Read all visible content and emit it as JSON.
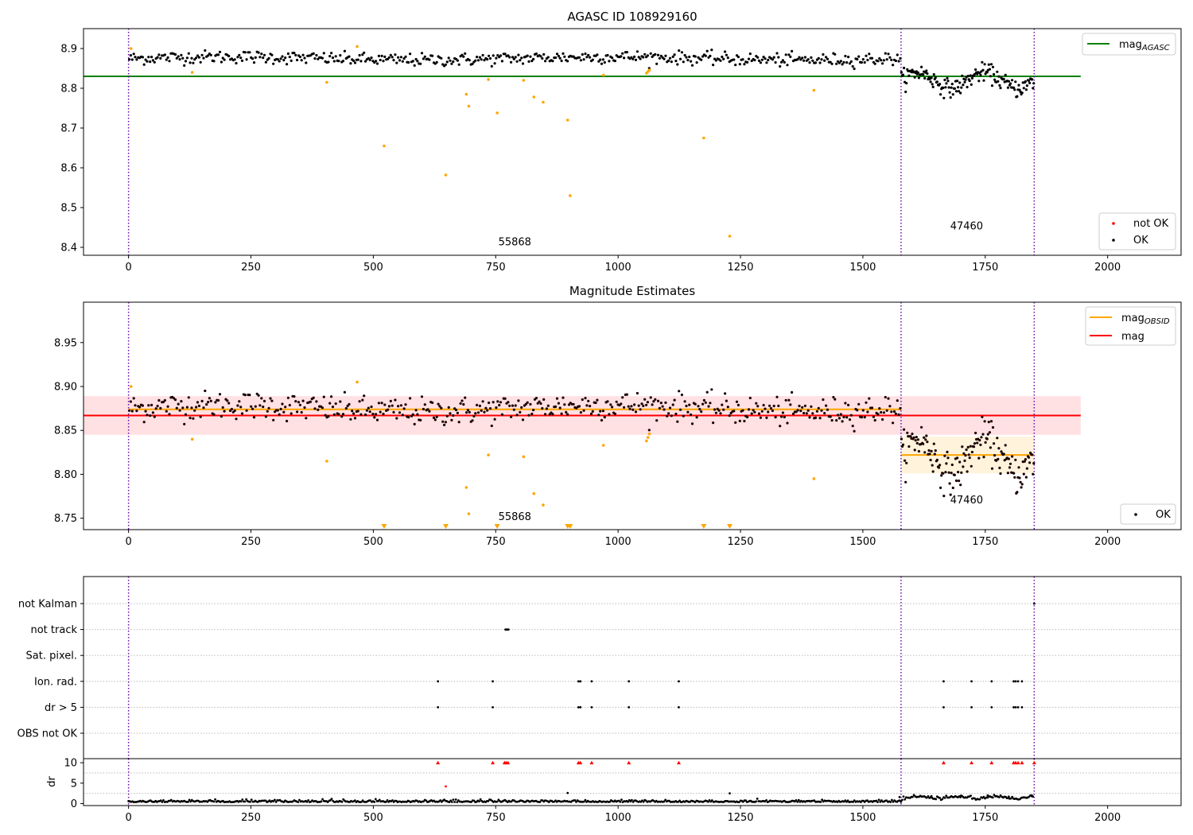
{
  "figure": {
    "colors": {
      "ok": "#000000",
      "not_ok": "#ff0000",
      "suspect": "#ffa500",
      "mag_agasc": "#008000",
      "mag_mean": "#ff0000",
      "mag_obsid": "#ffa500",
      "band_mag": "#ffe0e3",
      "band_obsid": "#fff3dc",
      "obs_boundary": "#6a0dad",
      "flag_grid": "#bbbbbb"
    }
  },
  "chart_data": [
    {
      "type": "scatter",
      "title": "AGASC ID 108929160",
      "xlabel": "",
      "ylabel": "",
      "xlim": [
        -92,
        2150
      ],
      "ylim": [
        8.38,
        8.95
      ],
      "xticks": [
        "0",
        "250",
        "500",
        "750",
        "1000",
        "1250",
        "1500",
        "1750",
        "2000"
      ],
      "yticks": [
        "8.4",
        "8.5",
        "8.6",
        "8.7",
        "8.8",
        "8.9"
      ],
      "obs_boundaries": [
        0,
        1578,
        1850
      ],
      "obsid_labels": [
        {
          "text": "55868",
          "x": 789,
          "y": 8.405
        },
        {
          "text": "47460",
          "x": 1712,
          "y": 8.445
        }
      ],
      "reference_lines": [
        {
          "name": "mag_AGASC",
          "y": 8.83,
          "x": [
            -92,
            1945
          ]
        }
      ],
      "legend": {
        "position": "top-right",
        "entries": [
          {
            "label": "mag",
            "sub": "AGASC"
          }
        ]
      },
      "legend2": {
        "position": "bottom-right",
        "entries": [
          {
            "label": "not OK"
          },
          {
            "label": "OK"
          }
        ]
      },
      "series": [
        {
          "name": "OK",
          "segments": [
            {
              "x0": 0,
              "x1": 1578,
              "n": 520,
              "mean": 8.875,
              "sd": 0.008,
              "wave": 0.004
            },
            {
              "x0": 1578,
              "x1": 1850,
              "n": 160,
              "mean": 8.82,
              "sd": 0.011,
              "wave": 0.02
            }
          ]
        },
        {
          "name": "suspect",
          "points": [
            [
              5,
              8.9
            ],
            [
              130,
              8.84
            ],
            [
              405,
              8.815
            ],
            [
              467,
              8.905
            ],
            [
              522,
              8.655
            ],
            [
              648,
              8.582
            ],
            [
              690,
              8.785
            ],
            [
              695,
              8.755
            ],
            [
              735,
              8.822
            ],
            [
              753,
              8.738
            ],
            [
              807,
              8.82
            ],
            [
              828,
              8.778
            ],
            [
              847,
              8.765
            ],
            [
              897,
              8.72
            ],
            [
              902,
              8.53
            ],
            [
              970,
              8.833
            ],
            [
              1058,
              8.838
            ],
            [
              1061,
              8.842
            ],
            [
              1064,
              8.846
            ],
            [
              1175,
              8.675
            ],
            [
              1228,
              8.428
            ],
            [
              1400,
              8.795
            ]
          ]
        }
      ]
    },
    {
      "type": "scatter",
      "title": "Magnitude Estimates",
      "xlabel": "",
      "ylabel": "",
      "xlim": [
        -92,
        2150
      ],
      "ylim": [
        8.737,
        8.996
      ],
      "xticks": [
        "0",
        "250",
        "500",
        "750",
        "1000",
        "1250",
        "1500",
        "1750",
        "2000"
      ],
      "yticks": [
        "8.75",
        "8.80",
        "8.85",
        "8.90",
        "8.95"
      ],
      "obs_boundaries": [
        0,
        1578,
        1850
      ],
      "obsid_labels": [
        {
          "text": "55868",
          "x": 789,
          "y": 8.748
        },
        {
          "text": "47460",
          "x": 1712,
          "y": 8.767
        }
      ],
      "bands": [
        {
          "name": "mag",
          "x0": -92,
          "x1": 1945,
          "y0": 8.845,
          "y1": 8.889
        },
        {
          "name": "mag_OBSID",
          "x0": 1578,
          "x1": 1850,
          "y0": 8.801,
          "y1": 8.843
        }
      ],
      "reference_lines": [
        {
          "name": "mag",
          "y": 8.867,
          "x": [
            -92,
            1945
          ]
        },
        {
          "name": "mag_OBSID",
          "y": 8.874,
          "x": [
            0,
            1578
          ]
        },
        {
          "name": "mag_OBSID",
          "y": 8.822,
          "x": [
            1578,
            1850
          ]
        }
      ],
      "legend": {
        "position": "top-right",
        "entries": [
          {
            "label": "mag",
            "sub": "OBSID"
          },
          {
            "label": "mag"
          }
        ]
      },
      "legend2": {
        "position": "bottom-right",
        "entries": [
          {
            "label": "OK"
          }
        ]
      },
      "series": [
        {
          "name": "OK",
          "segments": [
            {
              "x0": 0,
              "x1": 1578,
              "n": 520,
              "mean": 8.875,
              "sd": 0.008,
              "wave": 0.004
            },
            {
              "x0": 1578,
              "x1": 1850,
              "n": 160,
              "mean": 8.82,
              "sd": 0.011,
              "wave": 0.02
            }
          ]
        },
        {
          "name": "suspect",
          "points": [
            [
              5,
              8.9
            ],
            [
              130,
              8.84
            ],
            [
              405,
              8.815
            ],
            [
              467,
              8.905
            ],
            [
              690,
              8.785
            ],
            [
              695,
              8.755
            ],
            [
              735,
              8.822
            ],
            [
              807,
              8.82
            ],
            [
              828,
              8.778
            ],
            [
              847,
              8.765
            ],
            [
              970,
              8.833
            ],
            [
              1058,
              8.838
            ],
            [
              1061,
              8.842
            ],
            [
              1064,
              8.846
            ],
            [
              1400,
              8.795
            ]
          ]
        },
        {
          "name": "off-scale low",
          "x": [
            522,
            648,
            753,
            897,
            902,
            1175,
            1228
          ]
        }
      ]
    },
    {
      "type": "scatter",
      "title": "",
      "xlim": [
        -92,
        2150
      ],
      "categories": [
        "not Kalman",
        "not track",
        "Sat. pixel.",
        "Ion. rad.",
        "dr > 5",
        "OBS not OK"
      ],
      "obs_boundaries": [
        0,
        1578,
        1850
      ],
      "flags": {
        "not Kalman": [
          1850
        ],
        "not track": [
          770,
          772,
          774,
          776
        ],
        "Sat. pixel.": [],
        "Ion. rad.": [
          632,
          744,
          919,
          923,
          946,
          1022,
          1124,
          1665,
          1722,
          1763,
          1808,
          1812,
          1817,
          1825
        ],
        "dr > 5": [
          632,
          744,
          919,
          923,
          946,
          1022,
          1124,
          1665,
          1722,
          1763,
          1808,
          1812,
          1817,
          1825
        ],
        "OBS not OK": []
      }
    },
    {
      "type": "line",
      "title": "",
      "xlabel": "",
      "ylabel": "dr",
      "xlim": [
        -92,
        2150
      ],
      "ylim": [
        -0.5,
        11
      ],
      "yticks": [
        "0",
        "5",
        "10"
      ],
      "xticks": [
        "0",
        "250",
        "500",
        "750",
        "1000",
        "1250",
        "1500",
        "1750",
        "2000"
      ],
      "obs_boundaries": [
        0,
        1578,
        1850
      ],
      "capped_value": 10,
      "capped_x": [
        632,
        744,
        768,
        771,
        775,
        919,
        923,
        946,
        1022,
        1124,
        1665,
        1722,
        1763,
        1808,
        1812,
        1817,
        1825,
        1850
      ],
      "spikes": [
        [
          648,
          4.2
        ],
        [
          897,
          2.6
        ],
        [
          1228,
          2.5
        ],
        [
          1575,
          1.6
        ],
        [
          1640,
          1.8
        ],
        [
          1700,
          1.9
        ],
        [
          1755,
          2.0
        ],
        [
          1798,
          1.7
        ],
        [
          1845,
          2.0
        ]
      ]
    }
  ]
}
